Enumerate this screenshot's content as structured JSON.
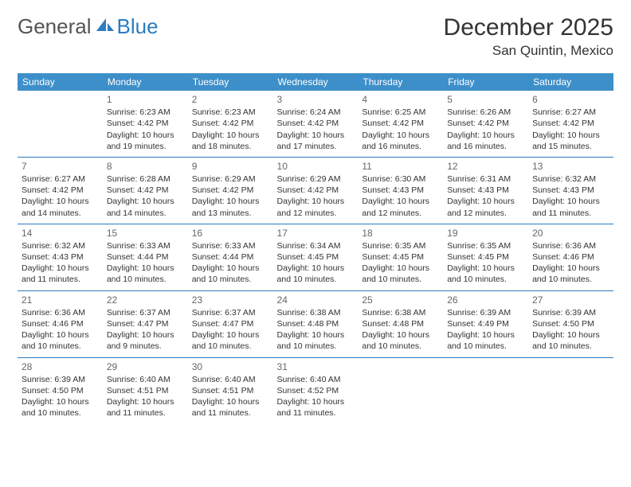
{
  "logo": {
    "part1": "General",
    "part2": "Blue"
  },
  "title": "December 2025",
  "location": "San Quintin, Mexico",
  "colors": {
    "header_bg": "#3d8fc9",
    "header_text": "#ffffff",
    "row_divider": "#2d7cc0",
    "daynum_color": "#666666",
    "body_text": "#333333",
    "logo_gray": "#555555",
    "logo_blue": "#2d7cc0"
  },
  "day_headers": [
    "Sunday",
    "Monday",
    "Tuesday",
    "Wednesday",
    "Thursday",
    "Friday",
    "Saturday"
  ],
  "weeks": [
    [
      null,
      {
        "n": "1",
        "sunrise": "6:23 AM",
        "sunset": "4:42 PM",
        "daylight": "10 hours and 19 minutes."
      },
      {
        "n": "2",
        "sunrise": "6:23 AM",
        "sunset": "4:42 PM",
        "daylight": "10 hours and 18 minutes."
      },
      {
        "n": "3",
        "sunrise": "6:24 AM",
        "sunset": "4:42 PM",
        "daylight": "10 hours and 17 minutes."
      },
      {
        "n": "4",
        "sunrise": "6:25 AM",
        "sunset": "4:42 PM",
        "daylight": "10 hours and 16 minutes."
      },
      {
        "n": "5",
        "sunrise": "6:26 AM",
        "sunset": "4:42 PM",
        "daylight": "10 hours and 16 minutes."
      },
      {
        "n": "6",
        "sunrise": "6:27 AM",
        "sunset": "4:42 PM",
        "daylight": "10 hours and 15 minutes."
      }
    ],
    [
      {
        "n": "7",
        "sunrise": "6:27 AM",
        "sunset": "4:42 PM",
        "daylight": "10 hours and 14 minutes."
      },
      {
        "n": "8",
        "sunrise": "6:28 AM",
        "sunset": "4:42 PM",
        "daylight": "10 hours and 14 minutes."
      },
      {
        "n": "9",
        "sunrise": "6:29 AM",
        "sunset": "4:42 PM",
        "daylight": "10 hours and 13 minutes."
      },
      {
        "n": "10",
        "sunrise": "6:29 AM",
        "sunset": "4:42 PM",
        "daylight": "10 hours and 12 minutes."
      },
      {
        "n": "11",
        "sunrise": "6:30 AM",
        "sunset": "4:43 PM",
        "daylight": "10 hours and 12 minutes."
      },
      {
        "n": "12",
        "sunrise": "6:31 AM",
        "sunset": "4:43 PM",
        "daylight": "10 hours and 12 minutes."
      },
      {
        "n": "13",
        "sunrise": "6:32 AM",
        "sunset": "4:43 PM",
        "daylight": "10 hours and 11 minutes."
      }
    ],
    [
      {
        "n": "14",
        "sunrise": "6:32 AM",
        "sunset": "4:43 PM",
        "daylight": "10 hours and 11 minutes."
      },
      {
        "n": "15",
        "sunrise": "6:33 AM",
        "sunset": "4:44 PM",
        "daylight": "10 hours and 10 minutes."
      },
      {
        "n": "16",
        "sunrise": "6:33 AM",
        "sunset": "4:44 PM",
        "daylight": "10 hours and 10 minutes."
      },
      {
        "n": "17",
        "sunrise": "6:34 AM",
        "sunset": "4:45 PM",
        "daylight": "10 hours and 10 minutes."
      },
      {
        "n": "18",
        "sunrise": "6:35 AM",
        "sunset": "4:45 PM",
        "daylight": "10 hours and 10 minutes."
      },
      {
        "n": "19",
        "sunrise": "6:35 AM",
        "sunset": "4:45 PM",
        "daylight": "10 hours and 10 minutes."
      },
      {
        "n": "20",
        "sunrise": "6:36 AM",
        "sunset": "4:46 PM",
        "daylight": "10 hours and 10 minutes."
      }
    ],
    [
      {
        "n": "21",
        "sunrise": "6:36 AM",
        "sunset": "4:46 PM",
        "daylight": "10 hours and 10 minutes."
      },
      {
        "n": "22",
        "sunrise": "6:37 AM",
        "sunset": "4:47 PM",
        "daylight": "10 hours and 9 minutes."
      },
      {
        "n": "23",
        "sunrise": "6:37 AM",
        "sunset": "4:47 PM",
        "daylight": "10 hours and 10 minutes."
      },
      {
        "n": "24",
        "sunrise": "6:38 AM",
        "sunset": "4:48 PM",
        "daylight": "10 hours and 10 minutes."
      },
      {
        "n": "25",
        "sunrise": "6:38 AM",
        "sunset": "4:48 PM",
        "daylight": "10 hours and 10 minutes."
      },
      {
        "n": "26",
        "sunrise": "6:39 AM",
        "sunset": "4:49 PM",
        "daylight": "10 hours and 10 minutes."
      },
      {
        "n": "27",
        "sunrise": "6:39 AM",
        "sunset": "4:50 PM",
        "daylight": "10 hours and 10 minutes."
      }
    ],
    [
      {
        "n": "28",
        "sunrise": "6:39 AM",
        "sunset": "4:50 PM",
        "daylight": "10 hours and 10 minutes."
      },
      {
        "n": "29",
        "sunrise": "6:40 AM",
        "sunset": "4:51 PM",
        "daylight": "10 hours and 11 minutes."
      },
      {
        "n": "30",
        "sunrise": "6:40 AM",
        "sunset": "4:51 PM",
        "daylight": "10 hours and 11 minutes."
      },
      {
        "n": "31",
        "sunrise": "6:40 AM",
        "sunset": "4:52 PM",
        "daylight": "10 hours and 11 minutes."
      },
      null,
      null,
      null
    ]
  ],
  "labels": {
    "sunrise": "Sunrise:",
    "sunset": "Sunset:",
    "daylight": "Daylight:"
  }
}
